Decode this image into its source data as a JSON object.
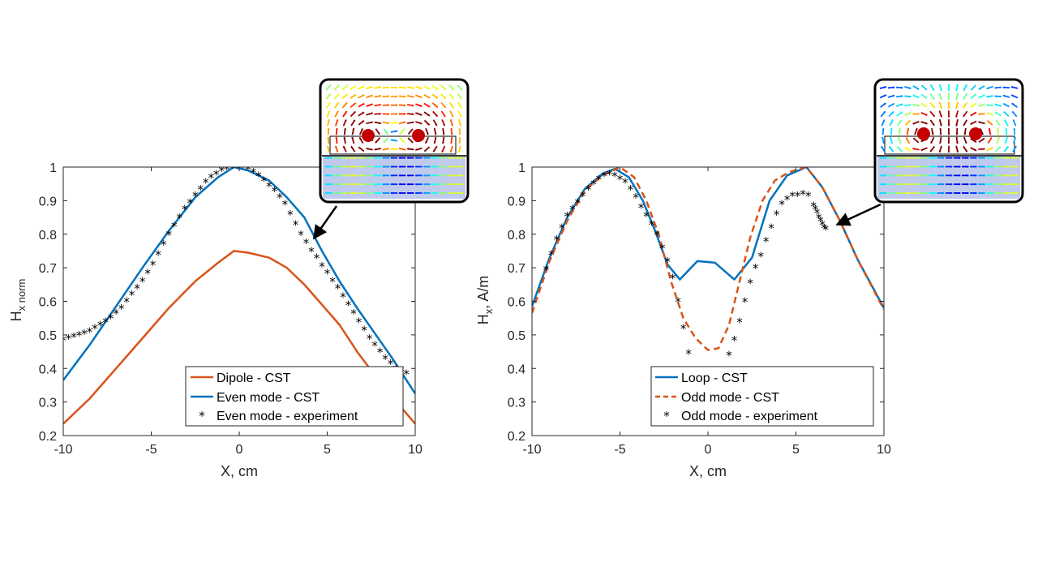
{
  "chart_data": [
    {
      "type": "line",
      "xlabel": "X, cm",
      "ylabel_main": "H",
      "ylabel_sub": "x norm",
      "xlim": [
        -10,
        10
      ],
      "ylim": [
        0.2,
        1.0
      ],
      "xticks": [
        -10,
        -5,
        0,
        5,
        10
      ],
      "yticks": [
        0.2,
        0.3,
        0.4,
        0.5,
        0.6,
        0.7,
        0.8,
        0.9,
        1.0
      ],
      "xtick_labels": [
        "-10",
        "-5",
        "0",
        "5",
        "10"
      ],
      "ytick_labels": [
        "0.2",
        "0.3",
        "0.4",
        "0.5",
        "0.6",
        "0.7",
        "0.8",
        "0.9",
        "1"
      ],
      "grid": false,
      "legend": "bottom-right",
      "series": [
        {
          "name": "Dipole - CST",
          "style": "line",
          "color": "#D95319",
          "x": [
            -10,
            -8.5,
            -7,
            -5.5,
            -4,
            -2.5,
            -1.2,
            -0.3,
            0.5,
            1.7,
            2.7,
            3.7,
            4.7,
            5.7,
            6.7,
            7.7,
            8.7,
            10
          ],
          "y": [
            0.235,
            0.31,
            0.4,
            0.49,
            0.58,
            0.66,
            0.715,
            0.75,
            0.745,
            0.73,
            0.7,
            0.65,
            0.59,
            0.53,
            0.45,
            0.38,
            0.315,
            0.235
          ]
        },
        {
          "name": "Even mode - CST",
          "style": "line",
          "color": "#0072BD",
          "x": [
            -10,
            -8.5,
            -7,
            -5.5,
            -4,
            -2.5,
            -1.2,
            -0.3,
            0.5,
            1.7,
            2.7,
            3.7,
            4.7,
            5.7,
            6.7,
            7.7,
            8.7,
            10
          ],
          "y": [
            0.365,
            0.47,
            0.585,
            0.7,
            0.81,
            0.91,
            0.97,
            1.0,
            0.99,
            0.96,
            0.91,
            0.85,
            0.75,
            0.66,
            0.58,
            0.505,
            0.43,
            0.325
          ]
        },
        {
          "name": "Even mode - experiment",
          "style": "markers",
          "marker": "*",
          "color": "#000000",
          "x": [
            -10,
            -9.7,
            -9.4,
            -9.1,
            -8.8,
            -8.5,
            -8.2,
            -7.9,
            -7.6,
            -7.3,
            -7.0,
            -6.7,
            -6.4,
            -6.1,
            -5.8,
            -5.5,
            -5.2,
            -4.9,
            -4.6,
            -4.3,
            -4.0,
            -3.7,
            -3.4,
            -3.1,
            -2.8,
            -2.5,
            -2.2,
            -1.9,
            -1.6,
            -1.3,
            -1.0,
            -0.7,
            -0.4,
            -0.1,
            0.2,
            0.5,
            0.8,
            1.1,
            1.4,
            1.7,
            2.0,
            2.3,
            2.6,
            2.9,
            3.2,
            3.5,
            3.8,
            4.1,
            4.4,
            4.7,
            5.0,
            5.3,
            5.6,
            5.9,
            6.2,
            6.5,
            6.8,
            7.1,
            7.4,
            7.7,
            8.0,
            8.3,
            8.6,
            8.9,
            9.2,
            9.5
          ],
          "y": [
            0.485,
            0.49,
            0.495,
            0.5,
            0.505,
            0.51,
            0.52,
            0.53,
            0.54,
            0.55,
            0.565,
            0.58,
            0.6,
            0.62,
            0.64,
            0.66,
            0.685,
            0.71,
            0.74,
            0.77,
            0.8,
            0.825,
            0.85,
            0.875,
            0.895,
            0.915,
            0.935,
            0.955,
            0.97,
            0.98,
            0.99,
            0.995,
            1.0,
            1.0,
            1.0,
            0.995,
            0.985,
            0.975,
            0.96,
            0.945,
            0.93,
            0.91,
            0.89,
            0.86,
            0.83,
            0.8,
            0.775,
            0.75,
            0.73,
            0.705,
            0.685,
            0.66,
            0.64,
            0.615,
            0.59,
            0.565,
            0.54,
            0.515,
            0.49,
            0.47,
            0.45,
            0.43,
            0.415,
            0.4,
            0.395,
            0.385
          ]
        }
      ]
    },
    {
      "type": "line",
      "xlabel": "X, cm",
      "ylabel_main": "H",
      "ylabel_sub": "x",
      "ylabel_suffix": ", A/m",
      "xlim": [
        -10,
        10
      ],
      "ylim": [
        0.2,
        1.0
      ],
      "xticks": [
        -10,
        -5,
        0,
        5,
        10
      ],
      "yticks": [
        0.2,
        0.3,
        0.4,
        0.5,
        0.6,
        0.7,
        0.8,
        0.9,
        1.0
      ],
      "xtick_labels": [
        "-10",
        "-5",
        "0",
        "5",
        "10"
      ],
      "ytick_labels": [
        "0.2",
        "0.3",
        "0.4",
        "0.5",
        "0.6",
        "0.7",
        "0.8",
        "0.9",
        "1"
      ],
      "grid": false,
      "legend": "bottom-right",
      "series": [
        {
          "name": "Loop - CST",
          "style": "line",
          "color": "#0072BD",
          "x": [
            -10,
            -9,
            -8,
            -7,
            -6,
            -5.3,
            -4.5,
            -3.7,
            -3,
            -2.3,
            -1.6,
            -0.6,
            0.4,
            1.5,
            2.5,
            3.5,
            4.5,
            5.6,
            6.5,
            7.5,
            8.5,
            10
          ],
          "y": [
            0.585,
            0.73,
            0.85,
            0.935,
            0.98,
            0.995,
            0.97,
            0.9,
            0.81,
            0.71,
            0.665,
            0.72,
            0.715,
            0.665,
            0.73,
            0.9,
            0.975,
            1.0,
            0.94,
            0.84,
            0.725,
            0.58
          ]
        },
        {
          "name": "Odd mode - CST",
          "style": "dashed",
          "color": "#D95319",
          "x": [
            -10,
            -9,
            -8,
            -7,
            -6,
            -5,
            -4.2,
            -3.5,
            -2.8,
            -2.1,
            -1.4,
            -0.7,
            0,
            0.6,
            1.2,
            1.8,
            2.4,
            3.1,
            3.8,
            4.6,
            5.6,
            6.5,
            7.5,
            8.5,
            10
          ],
          "y": [
            0.565,
            0.72,
            0.84,
            0.93,
            0.975,
            1.0,
            0.97,
            0.9,
            0.8,
            0.66,
            0.55,
            0.49,
            0.455,
            0.46,
            0.53,
            0.66,
            0.79,
            0.9,
            0.96,
            0.985,
            1.0,
            0.94,
            0.84,
            0.725,
            0.575
          ]
        },
        {
          "name": "Odd mode - experiment",
          "style": "markers",
          "marker": "*",
          "color": "#000000",
          "x": [
            -9.2,
            -8.9,
            -8.6,
            -8.3,
            -8.0,
            -7.7,
            -7.4,
            -7.1,
            -6.8,
            -6.5,
            -6.2,
            -5.9,
            -5.6,
            -5.3,
            -5.0,
            -4.7,
            -4.4,
            -4.1,
            -3.8,
            -3.5,
            -3.2,
            -2.9,
            -2.6,
            -2.3,
            -2.0,
            -1.7,
            -1.4,
            -1.1,
            -0.8,
            1.2,
            1.5,
            1.8,
            2.1,
            2.4,
            2.7,
            3.0,
            3.3,
            3.6,
            3.9,
            4.2,
            4.5,
            4.8,
            5.1,
            5.4,
            5.7,
            6.0,
            6.1,
            6.2,
            6.3,
            6.4,
            6.5,
            6.6,
            6.7
          ],
          "y": [
            0.695,
            0.74,
            0.785,
            0.82,
            0.855,
            0.875,
            0.895,
            0.915,
            0.935,
            0.95,
            0.965,
            0.975,
            0.98,
            0.975,
            0.965,
            0.955,
            0.935,
            0.91,
            0.88,
            0.855,
            0.83,
            0.8,
            0.76,
            0.72,
            0.67,
            0.6,
            0.52,
            0.445,
            0.39,
            0.44,
            0.485,
            0.54,
            0.6,
            0.655,
            0.7,
            0.735,
            0.78,
            0.82,
            0.86,
            0.89,
            0.905,
            0.915,
            0.915,
            0.92,
            0.915,
            0.885,
            0.875,
            0.865,
            0.85,
            0.84,
            0.83,
            0.82,
            0.815
          ]
        }
      ]
    }
  ]
}
